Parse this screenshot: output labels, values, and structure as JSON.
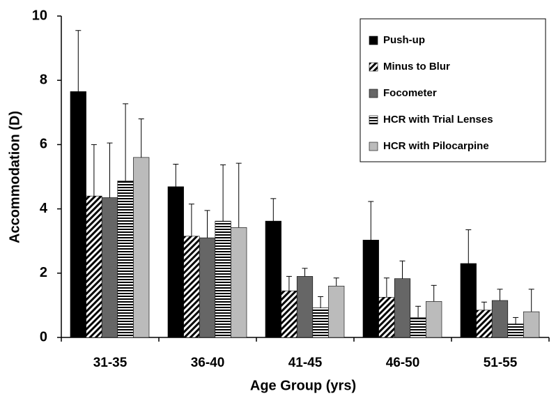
{
  "chart_data": {
    "type": "bar",
    "x_label": "Age Group (yrs)",
    "y_label": "Accommodation (D)",
    "categories": [
      "31-35",
      "36-40",
      "41-45",
      "46-50",
      "51-55"
    ],
    "ylim": [
      0,
      10
    ],
    "yticks": [
      0,
      2,
      4,
      6,
      8,
      10
    ],
    "legend": "upper right",
    "series": [
      {
        "name": "Push-up",
        "color": "#000000",
        "pattern": "solid",
        "values": [
          7.65,
          4.69,
          3.62,
          3.03,
          2.3
        ],
        "errors": [
          1.9,
          0.7,
          0.7,
          1.2,
          1.05
        ]
      },
      {
        "name": "Minus to Blur",
        "color": "#000000",
        "pattern": "diagonal",
        "values": [
          4.4,
          3.15,
          1.45,
          1.25,
          0.85
        ],
        "errors": [
          1.6,
          1.0,
          0.45,
          0.6,
          0.25
        ]
      },
      {
        "name": "Focometer",
        "color": "#666666",
        "pattern": "solid",
        "values": [
          4.35,
          3.1,
          1.9,
          1.83,
          1.15
        ],
        "errors": [
          1.7,
          0.85,
          0.25,
          0.55,
          0.35
        ]
      },
      {
        "name": "HCR with Trial Lenses",
        "color": "#000000",
        "pattern": "horizontal",
        "values": [
          4.87,
          3.62,
          0.92,
          0.62,
          0.42
        ],
        "errors": [
          2.4,
          1.75,
          0.35,
          0.35,
          0.2
        ]
      },
      {
        "name": "HCR with Pilocarpine",
        "color": "#bbbbbb",
        "pattern": "solid",
        "values": [
          5.6,
          3.42,
          1.6,
          1.12,
          0.8
        ],
        "errors": [
          1.2,
          2.0,
          0.25,
          0.5,
          0.7
        ]
      }
    ]
  }
}
